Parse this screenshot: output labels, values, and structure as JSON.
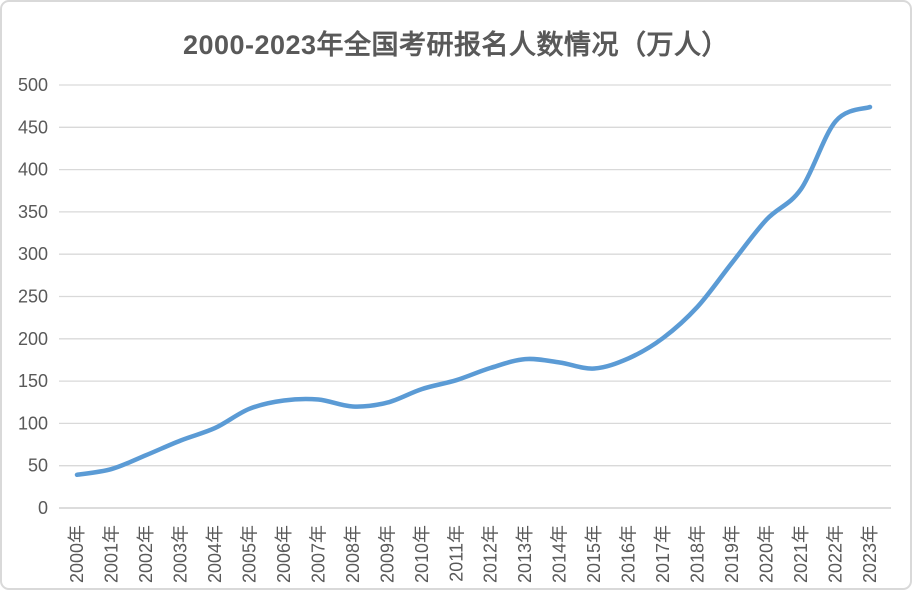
{
  "chart_data": {
    "type": "line",
    "title": "2000-2023年全国考研报名人数情况（万人）",
    "categories": [
      "2000年",
      "2001年",
      "2002年",
      "2003年",
      "2004年",
      "2005年",
      "2006年",
      "2007年",
      "2008年",
      "2009年",
      "2010年",
      "2011年",
      "2012年",
      "2013年",
      "2014年",
      "2015年",
      "2016年",
      "2017年",
      "2018年",
      "2019年",
      "2020年",
      "2021年",
      "2022年",
      "2023年"
    ],
    "series": [
      {
        "name": "考研报名人数",
        "values": [
          39.2,
          46,
          62.4,
          79.7,
          94.5,
          117.2,
          127.1,
          128.2,
          120,
          124.6,
          140.6,
          151.1,
          165.6,
          176,
          172,
          164.9,
          177,
          201,
          238,
          290,
          341,
          377,
          457,
          474
        ]
      }
    ],
    "xlabel": "",
    "ylabel": "",
    "ylim": [
      0,
      500
    ],
    "ytick_step": 50,
    "yticks": [
      0,
      50,
      100,
      150,
      200,
      250,
      300,
      350,
      400,
      450,
      500
    ],
    "grid": "horizontal",
    "legend": "none",
    "smooth_line": true,
    "colors": {
      "line": "#5B9BD5",
      "gridline": "#D9D9D9",
      "axis": "#C6C6C6",
      "text": "#595959",
      "title_text": "#595959",
      "background": "#FFFFFF",
      "frame_border": "#D9D9D9"
    }
  }
}
